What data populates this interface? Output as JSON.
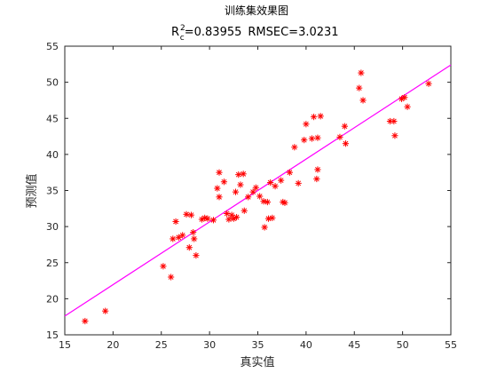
{
  "chart_data": {
    "type": "scatter",
    "title": "训练集效果图",
    "subtitle": {
      "r_symbol": "R",
      "r_superscript": "2",
      "r_subscript": "c",
      "r_value": "=0.83955",
      "rmse_text": "RMSEC=3.0231"
    },
    "xlabel": "真实值",
    "ylabel": "预测值",
    "xlim": [
      15,
      55
    ],
    "ylim": [
      15,
      55
    ],
    "xticks": [
      15,
      20,
      25,
      30,
      35,
      40,
      45,
      50,
      55
    ],
    "yticks": [
      15,
      20,
      25,
      30,
      35,
      40,
      45,
      50,
      55
    ],
    "grid": false,
    "marker": "*",
    "marker_color": "#ff0000",
    "fit_line": {
      "color": "#ff00ff",
      "x": [
        15,
        55
      ],
      "y": [
        17.6,
        52.4
      ]
    },
    "series": [
      {
        "points": [
          [
            17.1,
            16.9
          ],
          [
            19.2,
            18.3
          ],
          [
            25.2,
            24.5
          ],
          [
            26.0,
            23.0
          ],
          [
            26.2,
            28.3
          ],
          [
            26.5,
            30.7
          ],
          [
            26.8,
            28.5
          ],
          [
            27.2,
            28.8
          ],
          [
            27.6,
            31.7
          ],
          [
            27.9,
            27.1
          ],
          [
            28.1,
            31.6
          ],
          [
            28.3,
            29.2
          ],
          [
            28.4,
            28.3
          ],
          [
            28.6,
            26.0
          ],
          [
            29.2,
            31.0
          ],
          [
            29.5,
            31.2
          ],
          [
            29.8,
            31.1
          ],
          [
            30.4,
            30.9
          ],
          [
            30.8,
            35.3
          ],
          [
            31.0,
            37.5
          ],
          [
            31.0,
            34.1
          ],
          [
            31.5,
            36.2
          ],
          [
            31.8,
            31.8
          ],
          [
            32.0,
            31.0
          ],
          [
            32.3,
            31.6
          ],
          [
            32.5,
            31.1
          ],
          [
            32.8,
            31.3
          ],
          [
            32.7,
            34.8
          ],
          [
            33.0,
            37.2
          ],
          [
            33.2,
            35.8
          ],
          [
            33.5,
            37.3
          ],
          [
            33.6,
            32.2
          ],
          [
            34.0,
            34.1
          ],
          [
            34.5,
            34.8
          ],
          [
            34.8,
            35.4
          ],
          [
            35.2,
            34.2
          ],
          [
            35.6,
            33.5
          ],
          [
            35.7,
            29.9
          ],
          [
            36.0,
            33.4
          ],
          [
            36.1,
            31.1
          ],
          [
            36.3,
            36.1
          ],
          [
            36.5,
            31.2
          ],
          [
            36.8,
            35.6
          ],
          [
            37.4,
            36.4
          ],
          [
            37.6,
            33.4
          ],
          [
            37.8,
            33.3
          ],
          [
            38.3,
            37.5
          ],
          [
            38.8,
            41.0
          ],
          [
            39.2,
            36.0
          ],
          [
            39.8,
            42.0
          ],
          [
            40.0,
            44.2
          ],
          [
            40.6,
            42.2
          ],
          [
            40.8,
            45.2
          ],
          [
            41.1,
            36.6
          ],
          [
            41.2,
            37.9
          ],
          [
            41.5,
            45.3
          ],
          [
            41.2,
            42.3
          ],
          [
            43.5,
            42.4
          ],
          [
            44.0,
            43.9
          ],
          [
            44.1,
            41.5
          ],
          [
            45.5,
            49.2
          ],
          [
            45.7,
            51.3
          ],
          [
            45.9,
            47.5
          ],
          [
            48.7,
            44.6
          ],
          [
            49.1,
            44.6
          ],
          [
            49.2,
            42.6
          ],
          [
            49.9,
            47.7
          ],
          [
            50.2,
            47.9
          ],
          [
            50.5,
            46.6
          ],
          [
            52.7,
            49.8
          ]
        ]
      }
    ]
  }
}
